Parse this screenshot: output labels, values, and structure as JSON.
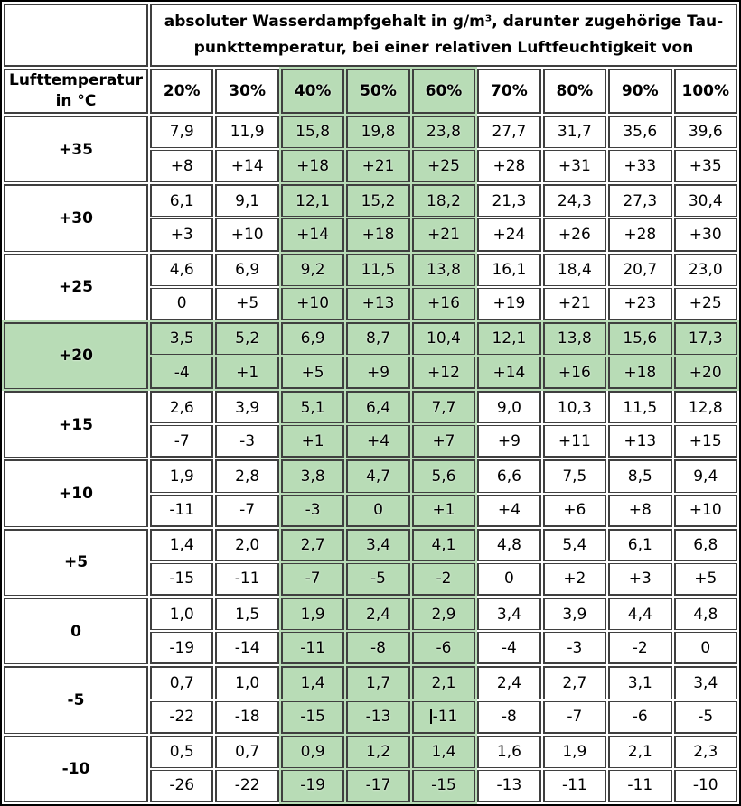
{
  "colors": {
    "highlight_green": "#b8dcb6",
    "border_dark": "#3f3f3f",
    "outer_border": "#000000",
    "background": "#ffffff"
  },
  "header": {
    "title_line1": "absoluter Wasserdampfgehalt in g/m³, darunter zugehörige Tau-",
    "title_line2": "punkttemperatur, bei einer relativen Luftfeuchtigkeit von",
    "row_axis_line1": "Lufttemperatur",
    "row_axis_line2": "in °C"
  },
  "columns": [
    "20%",
    "30%",
    "40%",
    "50%",
    "60%",
    "70%",
    "80%",
    "90%",
    "100%"
  ],
  "highlight_columns": [
    "40%",
    "50%",
    "60%"
  ],
  "highlight_row": "+20",
  "subrow_meaning": {
    "first": "absoluter Wasserdampfgehalt in g/m³",
    "second": "Taupunkttemperatur in °C"
  },
  "rows": [
    {
      "temperature": "+35",
      "vapor": [
        "7,9",
        "11,9",
        "15,8",
        "19,8",
        "23,8",
        "27,7",
        "31,7",
        "35,6",
        "39,6"
      ],
      "dewpoint": [
        "+8",
        "+14",
        "+18",
        "+21",
        "+25",
        "+28",
        "+31",
        "+33",
        "+35"
      ]
    },
    {
      "temperature": "+30",
      "vapor": [
        "6,1",
        "9,1",
        "12,1",
        "15,2",
        "18,2",
        "21,3",
        "24,3",
        "27,3",
        "30,4"
      ],
      "dewpoint": [
        "+3",
        "+10",
        "+14",
        "+18",
        "+21",
        "+24",
        "+26",
        "+28",
        "+30"
      ]
    },
    {
      "temperature": "+25",
      "vapor": [
        "4,6",
        "6,9",
        "9,2",
        "11,5",
        "13,8",
        "16,1",
        "18,4",
        "20,7",
        "23,0"
      ],
      "dewpoint": [
        "0",
        "+5",
        "+10",
        "+13",
        "+16",
        "+19",
        "+21",
        "+23",
        "+25"
      ]
    },
    {
      "temperature": "+20",
      "vapor": [
        "3,5",
        "5,2",
        "6,9",
        "8,7",
        "10,4",
        "12,1",
        "13,8",
        "15,6",
        "17,3"
      ],
      "dewpoint": [
        "-4",
        "+1",
        "+5",
        "+9",
        "+12",
        "+14",
        "+16",
        "+18",
        "+20"
      ]
    },
    {
      "temperature": "+15",
      "vapor": [
        "2,6",
        "3,9",
        "5,1",
        "6,4",
        "7,7",
        "9,0",
        "10,3",
        "11,5",
        "12,8"
      ],
      "dewpoint": [
        "-7",
        "-3",
        "+1",
        "+4",
        "+7",
        "+9",
        "+11",
        "+13",
        "+15"
      ]
    },
    {
      "temperature": "+10",
      "vapor": [
        "1,9",
        "2,8",
        "3,8",
        "4,7",
        "5,6",
        "6,6",
        "7,5",
        "8,5",
        "9,4"
      ],
      "dewpoint": [
        "-11",
        "-7",
        "-3",
        "0",
        "+1",
        "+4",
        "+6",
        "+8",
        "+10"
      ]
    },
    {
      "temperature": "+5",
      "vapor": [
        "1,4",
        "2,0",
        "2,7",
        "3,4",
        "4,1",
        "4,8",
        "5,4",
        "6,1",
        "6,8"
      ],
      "dewpoint": [
        "-15",
        "-11",
        "-7",
        "-5",
        "-2",
        "0",
        "+2",
        "+3",
        "+5"
      ]
    },
    {
      "temperature": "0",
      "vapor": [
        "1,0",
        "1,5",
        "1,9",
        "2,4",
        "2,9",
        "3,4",
        "3,9",
        "4,4",
        "4,8"
      ],
      "dewpoint": [
        "-19",
        "-14",
        "-11",
        "-8",
        "-6",
        "-4",
        "-3",
        "-2",
        "0"
      ]
    },
    {
      "temperature": "-5",
      "vapor": [
        "0,7",
        "1,0",
        "1,4",
        "1,7",
        "2,1",
        "2,4",
        "2,7",
        "3,1",
        "3,4"
      ],
      "dewpoint": [
        "-22",
        "-18",
        "-15",
        "-13",
        "-11",
        "-8",
        "-7",
        "-6",
        "-5"
      ]
    },
    {
      "temperature": "-10",
      "vapor": [
        "0,5",
        "0,7",
        "0,9",
        "1,2",
        "1,4",
        "1,6",
        "1,9",
        "2,1",
        "2,3"
      ],
      "dewpoint": [
        "-26",
        "-22",
        "-19",
        "-17",
        "-15",
        "-13",
        "-11",
        "-11",
        "-10"
      ]
    }
  ],
  "text_cursor": {
    "row_label": "-5",
    "subrow": "dewpoint",
    "column": "60%",
    "column_index": 4
  }
}
